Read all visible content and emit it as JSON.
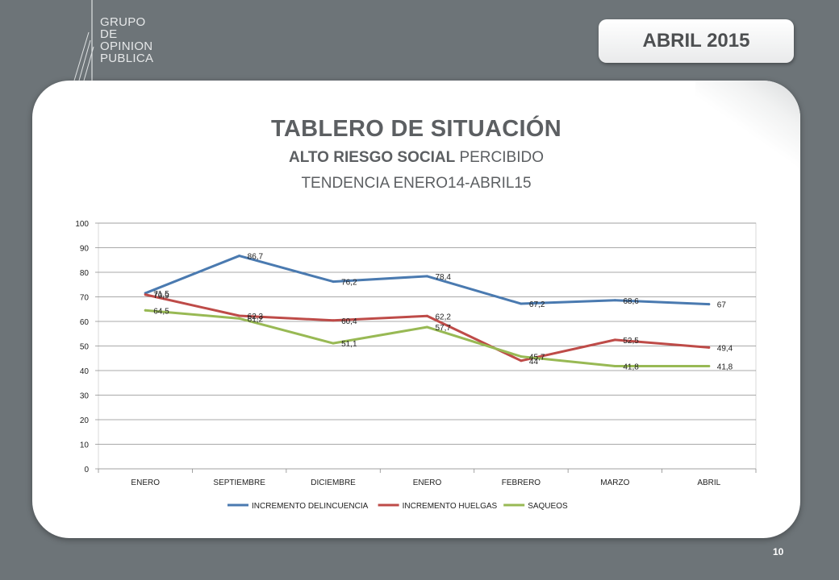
{
  "logo": {
    "lines": [
      "GRUPO",
      "DE",
      "OPINION",
      "PUBLICA"
    ]
  },
  "badge": {
    "label": "ABRIL 2015"
  },
  "page_number": "10",
  "chart_data": {
    "type": "line",
    "title": "TABLERO DE SITUACIÓN",
    "subtitle_bold": "ALTO RIESGO SOCIAL",
    "subtitle_rest": " PERCIBIDO",
    "subtitle2": "TENDENCIA ENERO14-ABRIL15",
    "categories": [
      "ENERO",
      "SEPTIEMBRE",
      "DICIEMBRE",
      "ENERO",
      "FEBRERO",
      "MARZO",
      "ABRIL"
    ],
    "ylim": [
      0,
      100
    ],
    "yticks": [
      0,
      10,
      20,
      30,
      40,
      50,
      60,
      70,
      80,
      90,
      100
    ],
    "grid": true,
    "legend": "bottom",
    "series": [
      {
        "name": "INCREMENTO DELINCUENCIA",
        "color": "#4a7ab0",
        "values": [
          71.5,
          86.7,
          76.2,
          78.4,
          67.2,
          68.6,
          67
        ],
        "labels": [
          "71,5",
          "86,7",
          "76,2",
          "78,4",
          "67,2",
          "68,6",
          "67"
        ]
      },
      {
        "name": "INCREMENTO HUELGAS",
        "color": "#be4b48",
        "values": [
          70.9,
          62.3,
          60.4,
          62.2,
          44,
          52.5,
          49.4
        ],
        "labels": [
          "70,9",
          "62,3",
          "60,4",
          "62,2",
          "44",
          "52,5",
          "49,4"
        ]
      },
      {
        "name": "SAQUEOS",
        "color": "#98b954",
        "values": [
          64.5,
          61.2,
          51.1,
          57.7,
          45.7,
          41.8,
          41.8
        ],
        "labels": [
          "64,5",
          "61,2",
          "51,1",
          "57,7",
          "45,7",
          "41,8",
          "41,8"
        ]
      }
    ]
  }
}
